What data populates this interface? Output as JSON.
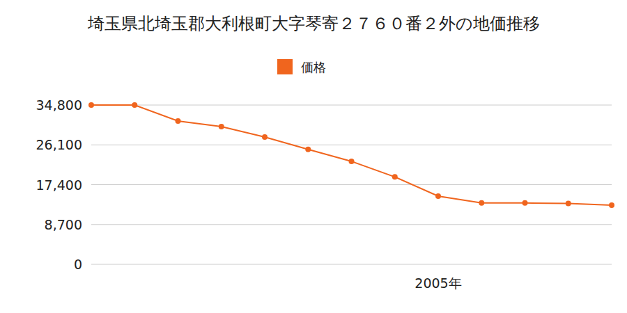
{
  "chart_data": {
    "type": "line",
    "title": "埼玉県北埼玉郡大利根町大字琴寄２７６０番２外の地価推移",
    "categories": [
      null,
      null,
      null,
      null,
      null,
      null,
      null,
      null,
      "2005年",
      null,
      null,
      null,
      null
    ],
    "series": [
      {
        "name": "価格",
        "color": "#f0651e",
        "marker": "circle",
        "values": [
          34800,
          34800,
          31300,
          30100,
          27800,
          25100,
          22500,
          19100,
          14900,
          13400,
          13400,
          13300,
          12900
        ]
      }
    ],
    "ylim": [
      0,
      34800
    ],
    "yticks": [
      0,
      {
        "value": 8700,
        "label": "8,700"
      },
      {
        "value": 17400,
        "label": "17,400"
      },
      {
        "value": 26100,
        "label": "26,100"
      },
      {
        "value": 34800,
        "label": "34,800"
      }
    ],
    "grid": true,
    "legend": "top"
  }
}
